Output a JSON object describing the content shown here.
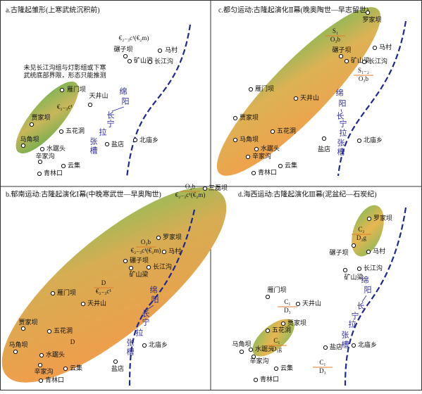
{
  "panels": [
    {
      "title": "a.古隆起雏形(上寒武统沉积前)",
      "places": [
        "马村",
        "碾子坝",
        "矿山梁",
        "长江沟",
        "雁门坝",
        "天井山",
        "贾家坝",
        "五花洞",
        "马角坝",
        "水踞头",
        "辛家沟",
        "云集",
        "盐店",
        "北庙乡",
        "青林口"
      ],
      "units": [
        {
          "text": "€₂₋₃c¹(€₂m)"
        },
        {
          "text": "€₂₋₃c¹"
        }
      ],
      "notes": [
        "未见长江沟组与灯影组或下寒",
        "武统底部界限，形态只能推测"
      ],
      "trough": [
        "绵",
        "阳",
        "长",
        "宁",
        "拉",
        "张",
        "槽"
      ]
    },
    {
      "title": "c.都匀运动:古隆起演化Ⅱ幕(晚奥陶世—早志留世)",
      "places": [
        "罗家坝",
        "马村",
        "碾子坝",
        "矿山梁",
        "长江沟",
        "雁门坝",
        "天井山",
        "贾家坝",
        "五花洞",
        "马角坝",
        "水踞头",
        "辛家沟",
        "云集",
        "盐店",
        "北庙乡",
        "青林口"
      ],
      "units": [
        {
          "top": "S₁",
          "bottom": "O₃b"
        },
        {
          "top": "S₁₋₂",
          "bottom": "O₃b"
        }
      ],
      "notes": [],
      "trough": [
        "绵",
        "阳",
        "长",
        "宁",
        "拉",
        "张",
        "槽"
      ]
    },
    {
      "title": "b.郁南运动:古隆起演化Ⅰ幕(中晚寒武世—早奥陶世)",
      "places": [
        "三磊坝",
        "罗家坝",
        "马村",
        "碾子坝",
        "长江沟",
        "矿山梁",
        "雁门坝",
        "天井山",
        "贾家坝",
        "五花洞",
        "马角坝",
        "水踞头",
        "辛家沟",
        "云集",
        "盐店",
        "北庙乡",
        "青林口"
      ],
      "units": [
        {
          "top": "O₃b",
          "bottom": "€₂₋₃c¹(€₂m)"
        },
        {
          "top": "O₃b",
          "bottom": "€₂₋₃c¹(€₂m)"
        },
        {
          "top": "D",
          "bottom": "€₂₋₃c¹"
        },
        {
          "text": "D"
        }
      ],
      "notes": [],
      "trough": [
        "绵",
        "阳",
        "长",
        "宁",
        "拉",
        "张",
        "槽"
      ]
    },
    {
      "title": "d.海西运动:古隆起演化Ⅲ幕(泥盆纪—石炭纪)",
      "places": [
        "罗家坝",
        "马村",
        "碾子坝",
        "长江沟",
        "矿山梁",
        "雁门坝",
        "天井山",
        "贾家坝",
        "五花洞",
        "马角坝",
        "水踞头",
        "辛家沟",
        "云集",
        "盐店",
        "北庙乡",
        "青林口"
      ],
      "units": [
        {
          "top": "C₂",
          "bottom": "D₃g"
        },
        {
          "top": "C₁",
          "bottom": "D₃"
        },
        {
          "top": "C₁",
          "bottom": "D₃g"
        },
        {
          "top": "C₁",
          "bottom": "D₃"
        }
      ],
      "notes": [],
      "trough": [
        "绵",
        "阳",
        "长",
        "宁",
        "拉",
        "张",
        "槽"
      ]
    }
  ]
}
